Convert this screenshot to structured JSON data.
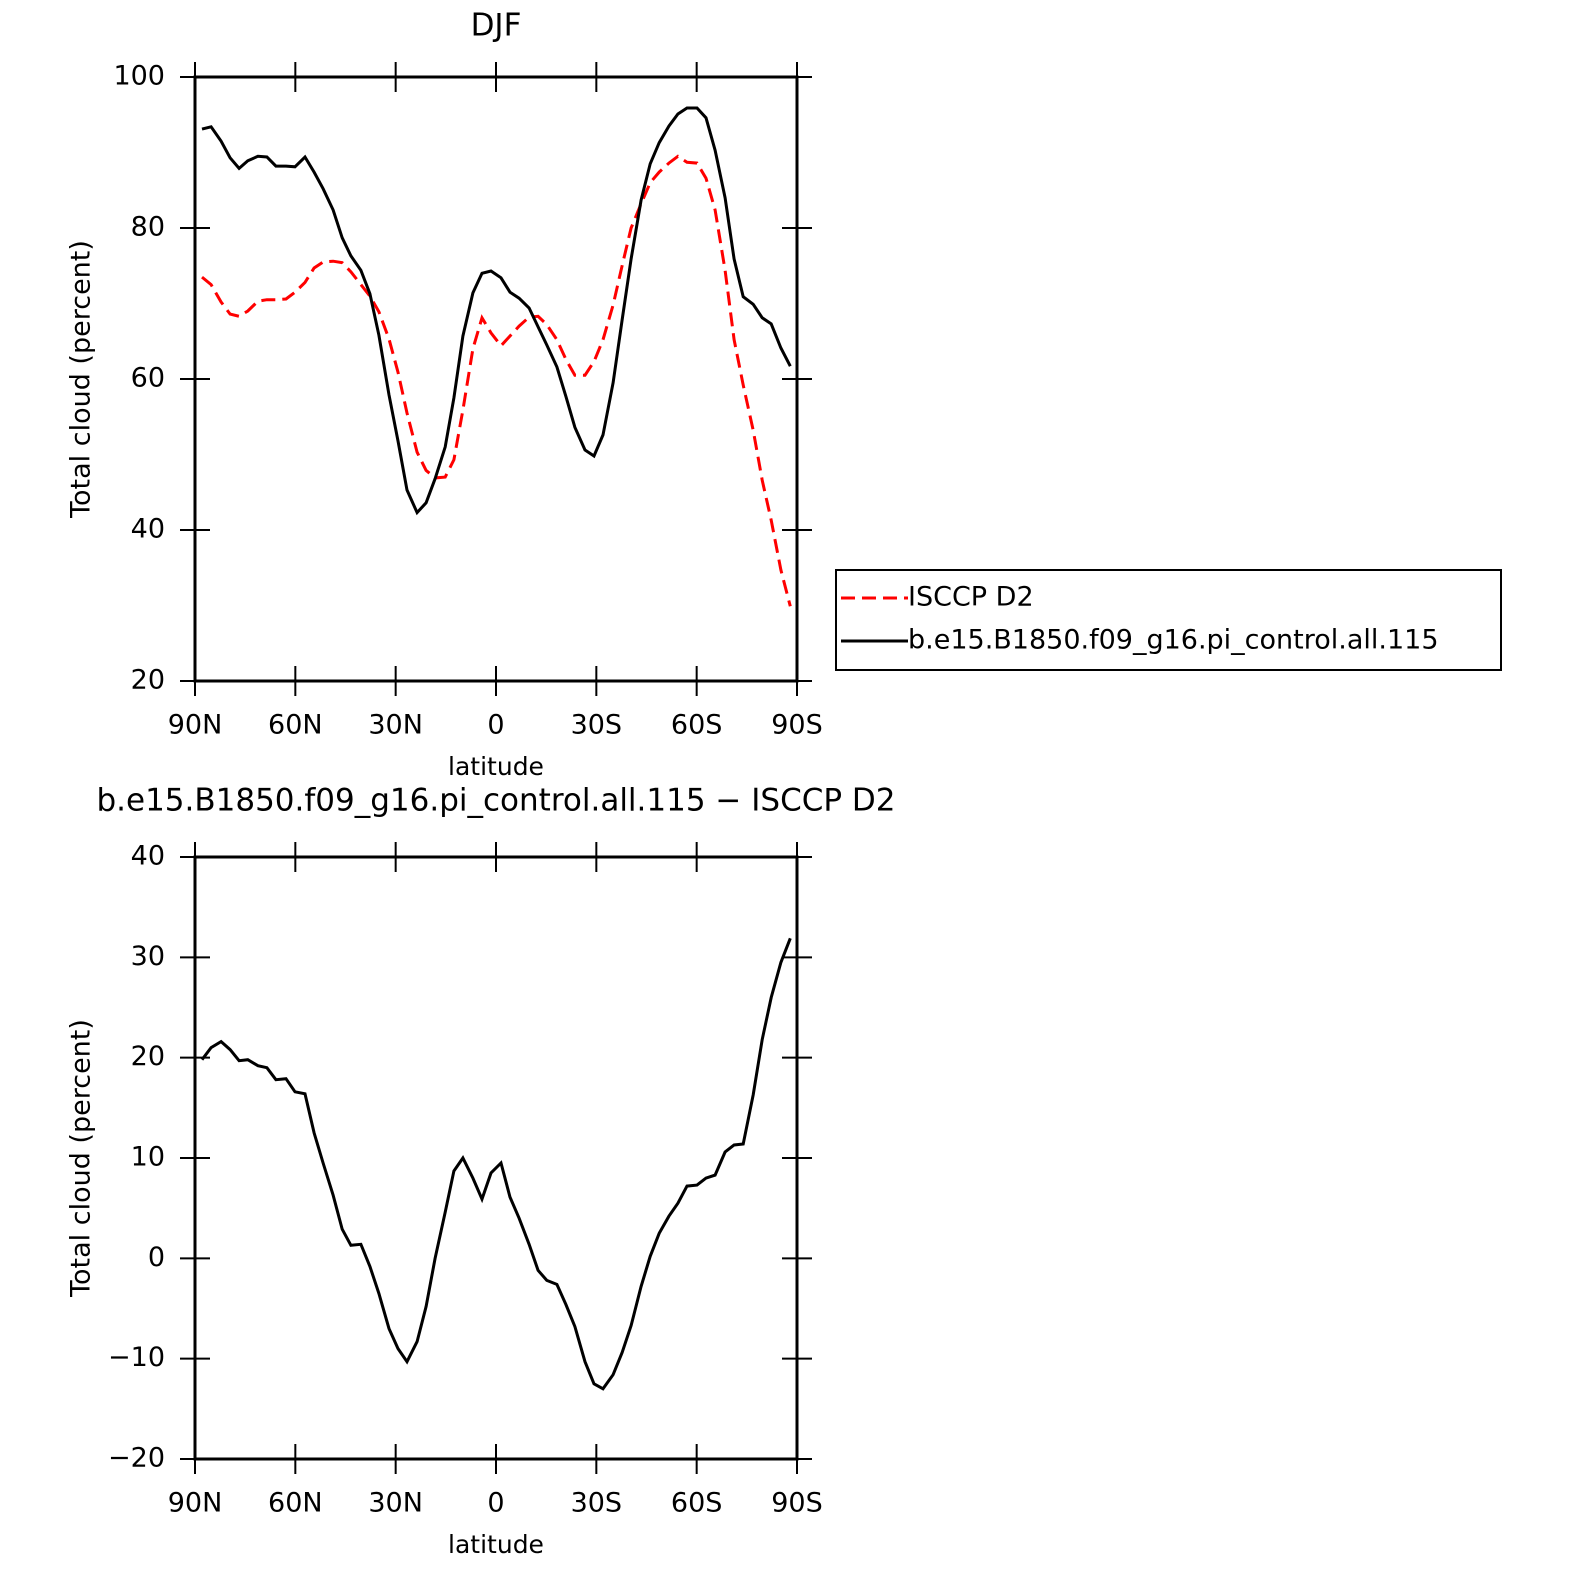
{
  "chart_data": [
    {
      "type": "line",
      "title": "DJF",
      "xlabel": "latitude",
      "ylabel": "Total cloud (percent)",
      "xlim": [
        90,
        -90
      ],
      "xticks": [
        {
          "value": 90,
          "label": "90N"
        },
        {
          "value": 60,
          "label": "60N"
        },
        {
          "value": 30,
          "label": "30N"
        },
        0,
        {
          "value": -30,
          "label": "30S"
        },
        {
          "value": -60,
          "label": "60S"
        },
        {
          "value": -90,
          "label": "90S"
        }
      ],
      "ylim": [
        20,
        100
      ],
      "yticks": [
        20,
        40,
        60,
        80,
        100
      ],
      "legend": "right",
      "x": [
        87.9,
        85.2,
        82.2,
        79.5,
        76.8,
        74.2,
        71.2,
        68.5,
        65.8,
        62.8,
        60.1,
        57.1,
        54.4,
        51.7,
        48.7,
        46.0,
        43.4,
        40.4,
        37.7,
        35.0,
        32.0,
        29.3,
        26.6,
        23.6,
        20.9,
        18.2,
        15.2,
        12.6,
        9.9,
        6.9,
        4.2,
        1.5,
        -1.5,
        -4.2,
        -6.9,
        -9.9,
        -12.6,
        -15.2,
        -18.2,
        -20.9,
        -23.6,
        -26.6,
        -29.3,
        -32.0,
        -35.0,
        -37.7,
        -40.4,
        -43.4,
        -46.1,
        -48.8,
        -51.7,
        -54.4,
        -57.1,
        -60.1,
        -62.8,
        -65.5,
        -68.5,
        -71.2,
        -73.9,
        -76.9,
        -79.6,
        -82.3,
        -85.2,
        -88.0
      ],
      "series": [
        {
          "name": "ISCCP D2",
          "color": "#ff0000",
          "dash": true,
          "values": [
            73.5,
            72.5,
            70.2,
            68.6,
            68.3,
            69.0,
            70.3,
            70.5,
            70.5,
            70.6,
            71.5,
            72.8,
            74.7,
            75.5,
            75.6,
            75.4,
            74.2,
            72.5,
            71.0,
            68.9,
            65.3,
            60.9,
            55.5,
            50.3,
            47.9,
            46.9,
            47.0,
            49.3,
            55.9,
            64.0,
            68.1,
            66.1,
            64.4,
            65.7,
            67.0,
            68.2,
            68.3,
            67.2,
            65.2,
            62.6,
            60.5,
            60.5,
            62.3,
            65.2,
            69.8,
            75.0,
            80.0,
            83.2,
            86.0,
            87.4,
            88.6,
            89.5,
            88.7,
            88.6,
            86.6,
            82.4,
            74.4,
            65.2,
            59.2,
            53.2,
            46.6,
            41.3,
            34.7,
            29.9
          ]
        },
        {
          "name": "b.e15.B1850.f09_g16.pi_control.all.115",
          "color": "#000000",
          "dash": false,
          "values": [
            93.1,
            93.4,
            91.5,
            89.3,
            87.9,
            88.9,
            89.5,
            89.4,
            88.2,
            88.2,
            88.1,
            89.4,
            87.4,
            85.2,
            82.4,
            78.7,
            76.3,
            74.4,
            71.3,
            65.8,
            57.9,
            51.8,
            45.3,
            42.3,
            43.6,
            46.8,
            51.0,
            57.5,
            65.7,
            71.4,
            74.0,
            74.3,
            73.4,
            71.5,
            70.7,
            69.4,
            66.9,
            64.5,
            61.6,
            57.7,
            53.6,
            50.6,
            49.8,
            52.6,
            59.5,
            67.8,
            75.9,
            83.7,
            88.5,
            91.3,
            93.5,
            95.1,
            95.9,
            95.9,
            94.6,
            90.3,
            84.0,
            75.9,
            70.9,
            69.9,
            68.1,
            67.3,
            64.1,
            61.7
          ]
        }
      ]
    },
    {
      "type": "line",
      "title": "b.e15.B1850.f09_g16.pi_control.all.115 − ISCCP D2",
      "xlabel": "latitude",
      "ylabel": "Total cloud (percent)",
      "xlim": [
        90,
        -90
      ],
      "xticks": [
        {
          "value": 90,
          "label": "90N"
        },
        {
          "value": 60,
          "label": "60N"
        },
        {
          "value": 30,
          "label": "30N"
        },
        0,
        {
          "value": -30,
          "label": "30S"
        },
        {
          "value": -60,
          "label": "60S"
        },
        {
          "value": -90,
          "label": "90S"
        }
      ],
      "ylim": [
        -20,
        40
      ],
      "yticks": [
        {
          "value": -20,
          "label": "−20"
        },
        {
          "value": -10,
          "label": "−10"
        },
        0,
        10,
        20,
        30,
        40
      ],
      "x": [
        87.9,
        85.2,
        82.2,
        79.5,
        76.8,
        74.2,
        71.2,
        68.5,
        65.8,
        62.8,
        60.1,
        57.1,
        54.4,
        51.7,
        48.7,
        46.0,
        43.4,
        40.4,
        37.7,
        35.0,
        32.0,
        29.3,
        26.6,
        23.6,
        20.9,
        18.2,
        15.2,
        12.6,
        9.9,
        6.9,
        4.2,
        1.5,
        -1.5,
        -4.2,
        -6.9,
        -9.9,
        -12.6,
        -15.2,
        -18.2,
        -20.9,
        -23.6,
        -26.6,
        -29.3,
        -32.0,
        -35.0,
        -37.7,
        -40.4,
        -43.4,
        -46.1,
        -48.8,
        -51.7,
        -54.4,
        -57.1,
        -60.1,
        -62.8,
        -65.5,
        -68.5,
        -71.2,
        -73.9,
        -76.9,
        -79.6,
        -82.3,
        -85.2,
        -88.0
      ],
      "series": [
        {
          "color": "#000000",
          "dash": false,
          "values": [
            19.8,
            21.0,
            21.6,
            20.8,
            19.7,
            19.8,
            19.2,
            19.0,
            17.8,
            17.9,
            16.6,
            16.4,
            12.5,
            9.5,
            6.3,
            2.9,
            1.3,
            1.4,
            -0.8,
            -3.5,
            -7.0,
            -9.0,
            -10.3,
            -8.3,
            -4.8,
            0.0,
            4.6,
            8.7,
            10.0,
            8.0,
            5.9,
            8.5,
            9.5,
            6.1,
            4.0,
            1.4,
            -1.2,
            -2.2,
            -2.6,
            -4.6,
            -6.8,
            -10.3,
            -12.5,
            -13.0,
            -11.6,
            -9.4,
            -6.7,
            -2.8,
            0.2,
            2.5,
            4.2,
            5.5,
            7.2,
            7.3,
            8.0,
            8.3,
            10.6,
            11.3,
            11.4,
            16.3,
            21.8,
            26.0,
            29.5,
            31.9
          ]
        }
      ]
    }
  ]
}
